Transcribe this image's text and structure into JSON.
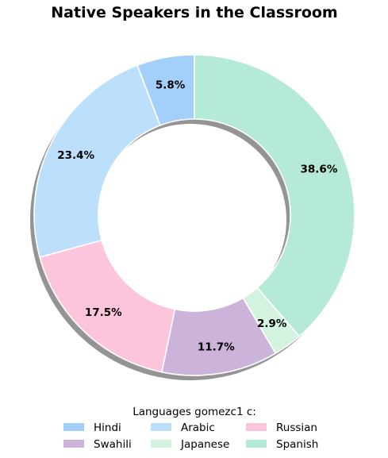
{
  "chart_data": {
    "type": "pie",
    "variant": "donut",
    "title": "Native Speakers in the Classroom",
    "categories": [
      "Hindi",
      "Arabic",
      "Russian",
      "Swahili",
      "Japanese",
      "Spanish"
    ],
    "values": [
      5.8,
      23.4,
      17.5,
      11.7,
      2.9,
      38.6
    ],
    "labels": [
      "5.8%",
      "23.4%",
      "17.5%",
      "11.7%",
      "2.9%",
      "38.6%"
    ],
    "colors": [
      "#a3d0fb",
      "#bcdffb",
      "#fdc5db",
      "#cbb3da",
      "#d3f3e0",
      "#b5ead6"
    ],
    "legend": {
      "title": "Languages gomezc1 c:",
      "placement": "bottom-center",
      "columns": 3
    },
    "start_angle_deg": 90,
    "direction": "counterclockwise",
    "shadow": true
  }
}
